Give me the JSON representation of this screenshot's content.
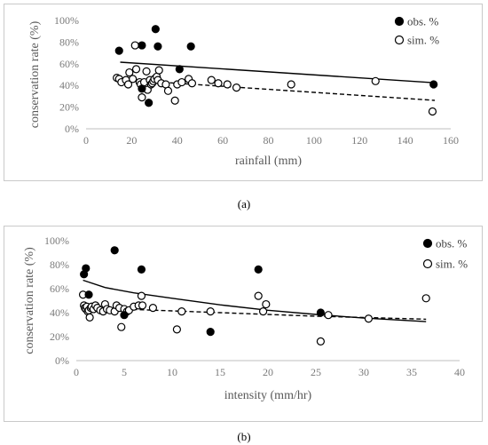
{
  "captions": {
    "a": "(a)",
    "b": "(b)"
  },
  "chart_data": [
    {
      "type": "scatter",
      "ylabel": "conservation rate (%)",
      "xlabel": "rainfall (mm)",
      "xlim": [
        0,
        160
      ],
      "ylim": [
        0,
        1
      ],
      "x_ticks": [
        0,
        20,
        40,
        60,
        80,
        100,
        120,
        140,
        160
      ],
      "y_ticks": [
        "0%",
        "20%",
        "40%",
        "60%",
        "80%",
        "100%"
      ],
      "y_tick_values": [
        0,
        0.2,
        0.4,
        0.6,
        0.8,
        1.0
      ],
      "legend_position": "top-right",
      "series": [
        {
          "name": "obs. %",
          "marker": "filled",
          "x": [
            14.5,
            24.5,
            30.5,
            31.5,
            46,
            41,
            24.5,
            27.5,
            152.5
          ],
          "y": [
            0.72,
            0.77,
            0.92,
            0.76,
            0.76,
            0.55,
            0.37,
            0.24,
            0.41
          ]
        },
        {
          "name": "sim. %",
          "marker": "open",
          "x": [
            13.5,
            14.5,
            15.5,
            17.5,
            18.5,
            19,
            20.5,
            21.5,
            22,
            23.5,
            24,
            24.5,
            25.5,
            26.5,
            27,
            28,
            28.5,
            29,
            29.5,
            30,
            31,
            31.5,
            32,
            33,
            35,
            36,
            39,
            40,
            42,
            45,
            46.5,
            55,
            58,
            62,
            66,
            90,
            127,
            152
          ],
          "y": [
            0.47,
            0.46,
            0.43,
            0.45,
            0.41,
            0.52,
            0.46,
            0.77,
            0.55,
            0.43,
            0.41,
            0.29,
            0.43,
            0.53,
            0.36,
            0.45,
            0.41,
            0.42,
            0.44,
            0.46,
            0.48,
            0.45,
            0.54,
            0.42,
            0.41,
            0.35,
            0.26,
            0.41,
            0.43,
            0.46,
            0.42,
            0.45,
            0.42,
            0.41,
            0.38,
            0.41,
            0.44,
            0.16
          ]
        }
      ],
      "trendlines": [
        {
          "series": "obs. %",
          "style": "solid",
          "x": [
            15,
            153
          ],
          "y": [
            0.615,
            0.425
          ]
        },
        {
          "series": "sim. %",
          "style": "dashed",
          "x": [
            15,
            153
          ],
          "y": [
            0.455,
            0.262
          ]
        }
      ]
    },
    {
      "type": "scatter",
      "ylabel": "conservation rate (%)",
      "xlabel": "intensity (mm/hr)",
      "xlim": [
        0,
        40
      ],
      "ylim": [
        0,
        1
      ],
      "x_ticks": [
        0,
        5,
        10,
        15,
        20,
        25,
        30,
        35,
        40
      ],
      "y_ticks": [
        "0%",
        "20%",
        "40%",
        "60%",
        "80%",
        "100%"
      ],
      "y_tick_values": [
        0,
        0.2,
        0.4,
        0.6,
        0.8,
        1.0
      ],
      "legend_position": "top-right",
      "series": [
        {
          "name": "obs. %",
          "marker": "filled",
          "x": [
            0.8,
            1,
            1.3,
            4,
            6.8,
            14,
            19,
            25.5,
            5
          ],
          "y": [
            0.72,
            0.77,
            0.55,
            0.92,
            0.76,
            0.24,
            0.76,
            0.4,
            0.38
          ]
        },
        {
          "name": "sim. %",
          "marker": "open",
          "x": [
            0.7,
            0.8,
            0.9,
            1,
            1.1,
            1.2,
            1.3,
            1.4,
            1.5,
            1.6,
            1.8,
            2,
            2.2,
            2.5,
            2.8,
            3,
            3.2,
            3.5,
            4,
            4.2,
            4.5,
            4.7,
            5,
            5.3,
            5.5,
            6,
            6.5,
            6.8,
            6.9,
            8,
            10.5,
            11,
            14,
            19,
            19.5,
            19.8,
            25.5,
            26.3,
            30.5,
            36.5
          ],
          "y": [
            0.55,
            0.46,
            0.44,
            0.43,
            0.45,
            0.41,
            0.42,
            0.36,
            0.44,
            0.45,
            0.43,
            0.46,
            0.44,
            0.42,
            0.41,
            0.47,
            0.43,
            0.42,
            0.41,
            0.46,
            0.44,
            0.28,
            0.43,
            0.41,
            0.42,
            0.45,
            0.46,
            0.54,
            0.46,
            0.44,
            0.26,
            0.41,
            0.41,
            0.54,
            0.41,
            0.47,
            0.16,
            0.38,
            0.35,
            0.52
          ]
        }
      ],
      "trendlines": [
        {
          "series": "obs. %",
          "style": "solid",
          "x": [
            0.7,
            3,
            6,
            10,
            15,
            20,
            25,
            30,
            36.5
          ],
          "y": [
            0.67,
            0.61,
            0.565,
            0.52,
            0.465,
            0.42,
            0.385,
            0.355,
            0.325
          ]
        },
        {
          "series": "sim. %",
          "style": "dashed",
          "x": [
            0.7,
            5,
            10,
            15,
            20,
            25,
            30,
            36.5
          ],
          "y": [
            0.45,
            0.43,
            0.415,
            0.4,
            0.385,
            0.37,
            0.36,
            0.345
          ]
        }
      ]
    }
  ]
}
